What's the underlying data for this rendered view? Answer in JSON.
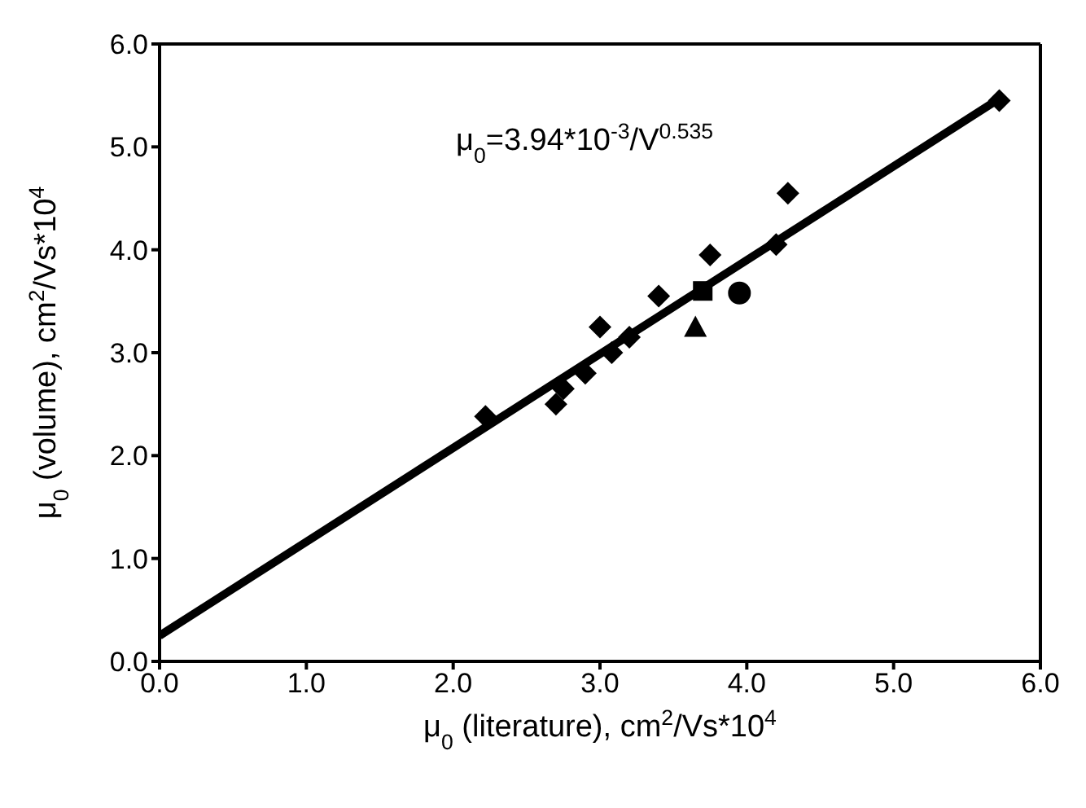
{
  "chart_data": {
    "type": "scatter",
    "xlabel": "μ$_{0}$ (literature), cm$^{2}$/Vs*10$^{4}$",
    "ylabel": "μ$_{0}$ (volume), cm$^{2}$/Vs*10$^{4}$",
    "annotations": [
      "μ$_{0}$=3.94*10$^{-3}$/V$^{0.535}$"
    ],
    "xlim": [
      0,
      6
    ],
    "ylim": [
      0,
      6
    ],
    "xticks": [
      {
        "value": 0,
        "label": "0.0"
      },
      {
        "value": 1,
        "label": "1.0"
      },
      {
        "value": 2,
        "label": "2.0"
      },
      {
        "value": 3,
        "label": "3.0"
      },
      {
        "value": 4,
        "label": "4.0"
      },
      {
        "value": 5,
        "label": "5.0"
      },
      {
        "value": 6,
        "label": "6.0"
      }
    ],
    "yticks": [
      {
        "value": 0,
        "label": "0.0"
      },
      {
        "value": 1,
        "label": "1.0"
      },
      {
        "value": 2,
        "label": "2.0"
      },
      {
        "value": 3,
        "label": "3.0"
      },
      {
        "value": 4,
        "label": "4.0"
      },
      {
        "value": 5,
        "label": "5.0"
      },
      {
        "value": 6,
        "label": "6.0"
      }
    ],
    "legend": false,
    "series": [
      {
        "type": "line",
        "color": "#000000",
        "marker": "none",
        "line_style": "solid",
        "x": [
          0,
          5.7
        ],
        "values": [
          0.25,
          5.45
        ]
      },
      {
        "color": "#000000",
        "marker": "diamond",
        "x": [
          2.22,
          2.7,
          2.75,
          2.9,
          3.0,
          3.08,
          3.2,
          3.4,
          3.75,
          4.2,
          4.28,
          5.72
        ],
        "values": [
          2.38,
          2.5,
          2.65,
          2.8,
          3.25,
          3.0,
          3.15,
          3.55,
          3.95,
          4.05,
          4.55,
          5.45
        ]
      },
      {
        "color": "#000000",
        "marker": "square",
        "x": [
          3.7
        ],
        "values": [
          3.6
        ]
      },
      {
        "color": "#000000",
        "marker": "triangle",
        "x": [
          3.65
        ],
        "values": [
          3.25
        ]
      },
      {
        "color": "#000000",
        "marker": "circle",
        "x": [
          3.95
        ],
        "values": [
          3.58
        ]
      }
    ]
  }
}
